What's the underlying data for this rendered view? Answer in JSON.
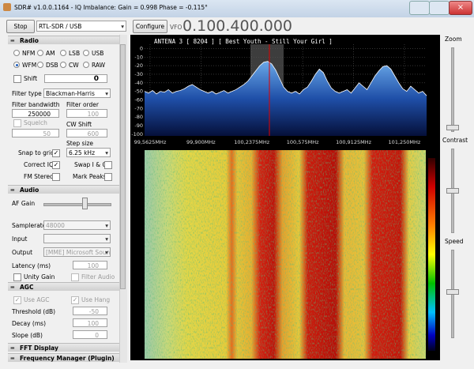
{
  "window": {
    "title": "SDR# v1.0.0.1164 - IQ Imbalance: Gain = 0.998 Phase = -0.115°"
  },
  "toolbar": {
    "stop": "Stop",
    "device": "RTL-SDR / USB",
    "configure": "Configure",
    "vfo_label": "VFO",
    "vfo": "0.100.400.000"
  },
  "radio": {
    "header": "Radio",
    "modes": [
      "NFM",
      "AM",
      "LSB",
      "USB",
      "WFM",
      "DSB",
      "CW",
      "RAW"
    ],
    "selected_mode": 4,
    "shift": {
      "label": "Shift",
      "checked": false,
      "value": "0"
    },
    "filter_type": {
      "label": "Filter type",
      "value": "Blackman-Harris"
    },
    "filter_bandwidth": {
      "label": "Filter bandwidth",
      "value": "250000"
    },
    "filter_order": {
      "label": "Filter order",
      "value": "100"
    },
    "squelch": {
      "label": "Squelch",
      "checked": false,
      "value": "50"
    },
    "cw_shift": {
      "label": "CW Shift",
      "value": "600"
    },
    "step_size": {
      "label": "Step size",
      "value": "6.25 kHz"
    },
    "snap_to_grid": {
      "label": "Snap to grid",
      "checked": true
    },
    "correct_iq": {
      "label": "Correct IQ",
      "checked": true
    },
    "swap_iq": {
      "label": "Swap I & Q",
      "checked": false
    },
    "fm_stereo": {
      "label": "FM Stereo",
      "checked": false
    },
    "mark_peaks": {
      "label": "Mark Peaks",
      "checked": false
    }
  },
  "audio": {
    "header": "Audio",
    "af_gain": "AF Gain",
    "samplerate": {
      "label": "Samplerate",
      "value": "48000"
    },
    "input": {
      "label": "Input"
    },
    "output": {
      "label": "Output",
      "value": "[MME] Microsoft Sound"
    },
    "latency": {
      "label": "Latency (ms)",
      "value": "100"
    },
    "unity_gain": {
      "label": "Unity Gain",
      "checked": false
    },
    "filter_audio": {
      "label": "Filter Audio",
      "checked": false
    }
  },
  "agc": {
    "header": "AGC",
    "use_agc": {
      "label": "Use AGC",
      "checked": true
    },
    "use_hang": {
      "label": "Use Hang",
      "checked": true
    },
    "threshold": {
      "label": "Threshold (dB)",
      "value": "-50"
    },
    "decay": {
      "label": "Decay (ms)",
      "value": "100"
    },
    "slope": {
      "label": "Slope (dB)",
      "value": "0"
    }
  },
  "collapsed": [
    "FFT Display",
    "Frequency Manager (Plugin)"
  ],
  "side": {
    "zoom": "Zoom",
    "contrast": "Contrast",
    "speed": "Speed"
  },
  "spectrum": {
    "type": "line",
    "title": "ANTENA 3 [ 8204 ] [ Best Youth - Still Your Girl ]",
    "color": "#ffffff",
    "xlim": [
      99.526,
      101.397
    ],
    "xticks": [
      {
        "value": 99.5625,
        "label": "99,5625MHz"
      },
      {
        "value": 99.9,
        "label": "99,900MHz"
      },
      {
        "value": 100.2375,
        "label": "100,2375MHz"
      },
      {
        "value": 100.575,
        "label": "100,575MHz"
      },
      {
        "value": 100.9125,
        "label": "100,9125MHz"
      },
      {
        "value": 101.25,
        "label": "101,250MHz"
      }
    ],
    "ylim": [
      -102,
      5
    ],
    "yticks": [
      0,
      -10,
      -20,
      -30,
      -40,
      -50,
      -60,
      -70,
      -80,
      -90,
      -100
    ],
    "grid": true,
    "values": [
      -50,
      -52,
      -49,
      -53,
      -50,
      -51,
      -48,
      -52,
      -50,
      -49,
      -47,
      -44,
      -42,
      -45,
      -48,
      -50,
      -52,
      -50,
      -53,
      -51,
      -49,
      -52,
      -50,
      -48,
      -45,
      -42,
      -38,
      -32,
      -26,
      -20,
      -16,
      -15,
      -18,
      -25,
      -35,
      -45,
      -50,
      -52,
      -50,
      -53,
      -48,
      -45,
      -38,
      -30,
      -24,
      -28,
      -38,
      -46,
      -50,
      -52,
      -50,
      -48,
      -52,
      -46,
      -40,
      -44,
      -48,
      -40,
      -32,
      -26,
      -21,
      -20,
      -24,
      -32,
      -40,
      -47,
      -50,
      -44,
      -48,
      -52,
      -50,
      -55
    ]
  }
}
